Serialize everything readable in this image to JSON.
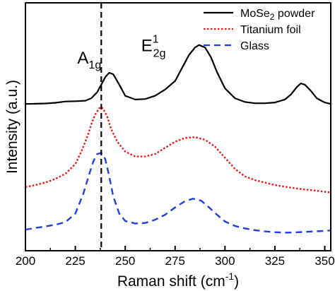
{
  "chart_data": {
    "type": "line",
    "title": "",
    "xlabel": "Raman shift (cm",
    "xlabel_sup": "-1",
    "xlabel_end": ")",
    "ylabel": "Intensity (a.u.)",
    "xlim": [
      200,
      353
    ],
    "xticks": [
      200,
      225,
      250,
      275,
      300,
      325,
      350
    ],
    "xtick_labels": [
      "200",
      "225",
      "250",
      "275",
      "300",
      "325",
      "350"
    ],
    "ylim": [
      0,
      1
    ],
    "yticks_shown": false,
    "grid": false,
    "legend": {
      "placement": "top-right",
      "entries": [
        {
          "label": "MoSe",
          "sub": "2",
          "label_end": " powder"
        },
        {
          "label": "Titanium foil",
          "sub": "",
          "label_end": ""
        },
        {
          "label": "Glass",
          "sub": "",
          "label_end": ""
        }
      ]
    },
    "reference_line": {
      "x": 238,
      "style": "dashed",
      "color": "#000000"
    },
    "annotations": [
      {
        "text": "A",
        "sub": "1g",
        "sup": "",
        "x": 226,
        "y": 0.755
      },
      {
        "text": "E",
        "sub": "2g",
        "sup": "1",
        "x": 258,
        "y": 0.805
      }
    ],
    "series": [
      {
        "name": "MoSe2 powder",
        "color": "#000000",
        "style": "solid",
        "x": [
          200,
          205,
          210,
          215,
          220,
          225,
          230,
          233,
          236,
          238,
          240,
          242,
          244,
          247,
          250,
          255,
          260,
          265,
          270,
          275,
          278,
          282,
          285,
          287,
          290,
          293,
          296,
          300,
          305,
          310,
          315,
          320,
          325,
          330,
          333,
          336,
          338,
          340,
          343,
          346,
          350,
          353
        ],
        "y": [
          0.592,
          0.593,
          0.594,
          0.597,
          0.602,
          0.603,
          0.605,
          0.615,
          0.64,
          0.67,
          0.7,
          0.718,
          0.712,
          0.67,
          0.625,
          0.61,
          0.612,
          0.625,
          0.65,
          0.685,
          0.73,
          0.79,
          0.82,
          0.83,
          0.82,
          0.78,
          0.72,
          0.655,
          0.615,
          0.6,
          0.595,
          0.595,
          0.598,
          0.61,
          0.63,
          0.66,
          0.675,
          0.67,
          0.645,
          0.615,
          0.598,
          0.592
        ]
      },
      {
        "name": "Titanium foil",
        "color": "#e41a1a",
        "style": "dotted",
        "x": [
          200,
          205,
          210,
          215,
          220,
          225,
          228,
          231,
          233,
          235,
          237,
          238,
          239,
          241,
          243,
          246,
          250,
          255,
          260,
          265,
          270,
          275,
          280,
          285,
          290,
          295,
          300,
          305,
          310,
          315,
          320,
          325,
          330,
          335,
          340,
          345,
          350,
          353
        ],
        "y": [
          0.257,
          0.265,
          0.275,
          0.29,
          0.31,
          0.35,
          0.4,
          0.46,
          0.51,
          0.55,
          0.575,
          0.58,
          0.572,
          0.54,
          0.49,
          0.44,
          0.4,
          0.38,
          0.38,
          0.39,
          0.415,
          0.44,
          0.455,
          0.458,
          0.448,
          0.42,
          0.375,
          0.33,
          0.3,
          0.285,
          0.275,
          0.265,
          0.258,
          0.252,
          0.247,
          0.243,
          0.238,
          0.235
        ]
      },
      {
        "name": "Glass",
        "color": "#1f3fe0",
        "style": "dashed",
        "x": [
          200,
          205,
          210,
          215,
          220,
          225,
          229,
          232,
          234,
          236,
          238,
          240,
          242,
          244,
          247,
          250,
          255,
          260,
          265,
          270,
          275,
          280,
          284,
          288,
          292,
          296,
          300,
          305,
          310,
          315,
          320,
          325,
          330,
          335,
          340,
          345,
          350,
          353
        ],
        "y": [
          0.085,
          0.092,
          0.098,
          0.105,
          0.115,
          0.15,
          0.23,
          0.31,
          0.36,
          0.39,
          0.395,
          0.37,
          0.3,
          0.22,
          0.15,
          0.12,
          0.11,
          0.112,
          0.125,
          0.145,
          0.175,
          0.2,
          0.21,
          0.202,
          0.175,
          0.145,
          0.118,
          0.1,
          0.09,
          0.083,
          0.078,
          0.075,
          0.073,
          0.074,
          0.076,
          0.078,
          0.08,
          0.082
        ]
      }
    ]
  }
}
